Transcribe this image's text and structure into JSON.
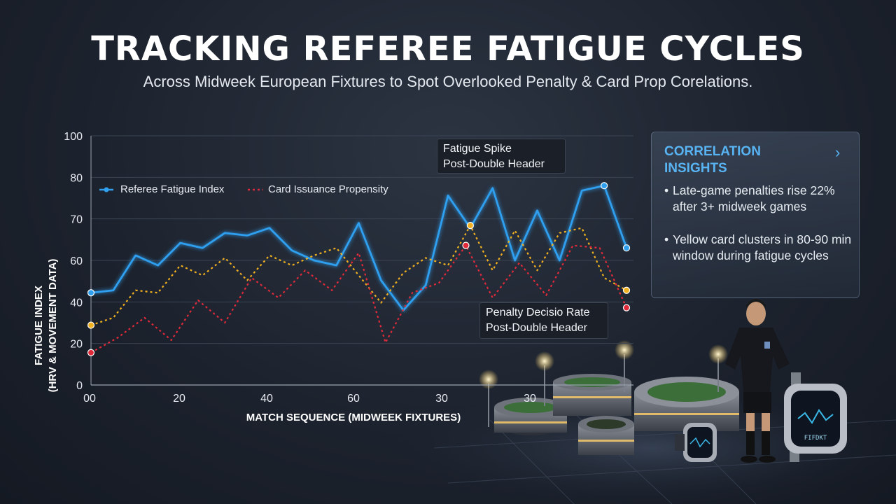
{
  "header": {
    "title": "TRACKING REFEREE FATIGUE CYCLES",
    "subtitle": "Across Midweek European Fixtures to Spot Overlooked Penalty & Card Prop Corelations."
  },
  "chart_data": {
    "type": "line",
    "ylabel": "FATIGUE INDEX\n(HRV & MOVEMENT DATA)",
    "xlabel": "MATCH SEQUENCE (MIDWEEK FIXTURES)",
    "ylim": [
      0,
      100
    ],
    "y_ticks": [
      "0",
      "20",
      "40",
      "60",
      "70",
      "80",
      "100"
    ],
    "x_ticks": [
      "00",
      "20",
      "40",
      "60",
      "30",
      "30"
    ],
    "grid": true,
    "legend_position": "top-left",
    "series": [
      {
        "name": "Referee Fatigue Index",
        "color": "#2f9ff0",
        "style": "solid",
        "values": [
          37,
          38,
          52,
          48,
          57,
          55,
          61,
          60,
          63,
          54,
          50,
          48,
          65,
          42,
          30,
          40,
          76,
          63,
          79,
          50,
          70,
          50,
          78,
          80,
          55
        ]
      },
      {
        "name": "Card Issuance Propensity",
        "color": "#f0b020",
        "style": "dotted",
        "values": [
          24,
          27,
          38,
          37,
          48,
          44,
          51,
          42,
          52,
          48,
          52,
          55,
          44,
          33,
          45,
          51,
          48,
          64,
          46,
          62,
          46,
          61,
          63,
          43,
          38
        ]
      },
      {
        "name": "Card Issuance Propensity",
        "color": "#e02a3a",
        "style": "dotted",
        "values": [
          13,
          19,
          27,
          18,
          34,
          25,
          43,
          35,
          46,
          38,
          53,
          17,
          37,
          41,
          56,
          35,
          49,
          36,
          56,
          55,
          31
        ]
      }
    ],
    "annotations": [
      {
        "text": "Fatigue Spike\nPost-Double Header"
      },
      {
        "text": "Penalty Decisio Rate\nPost-Double Header"
      }
    ]
  },
  "legend": {
    "item1": "Referee Fatigue Index",
    "item2": "Card Issuance Propensity"
  },
  "callouts": {
    "spike_line1": "Fatigue Spike",
    "spike_line2": "Post-Double Header",
    "penalty_line1": "Penalty Decisio Rate",
    "penalty_line2": "Post-Double Header"
  },
  "insights": {
    "title": "CORRELATION INSIGHTS",
    "chevron": "›",
    "items": [
      "Late-game penalties rise 22% after 3+ midweek games",
      "Yellow card clusters in 80-90 min window during fatigue cycles"
    ],
    "bullet": "•"
  },
  "colors": {
    "accent": "#58b4f3",
    "fatigue_line": "#2f9ff0",
    "card_line": "#f0b020",
    "penalty_line": "#e02a3a"
  },
  "illustration": {
    "icons": [
      "referee-figure",
      "smartwatch-icon",
      "stadium-icon",
      "floodlight-icon"
    ],
    "watch_text": "FIFDKT"
  }
}
